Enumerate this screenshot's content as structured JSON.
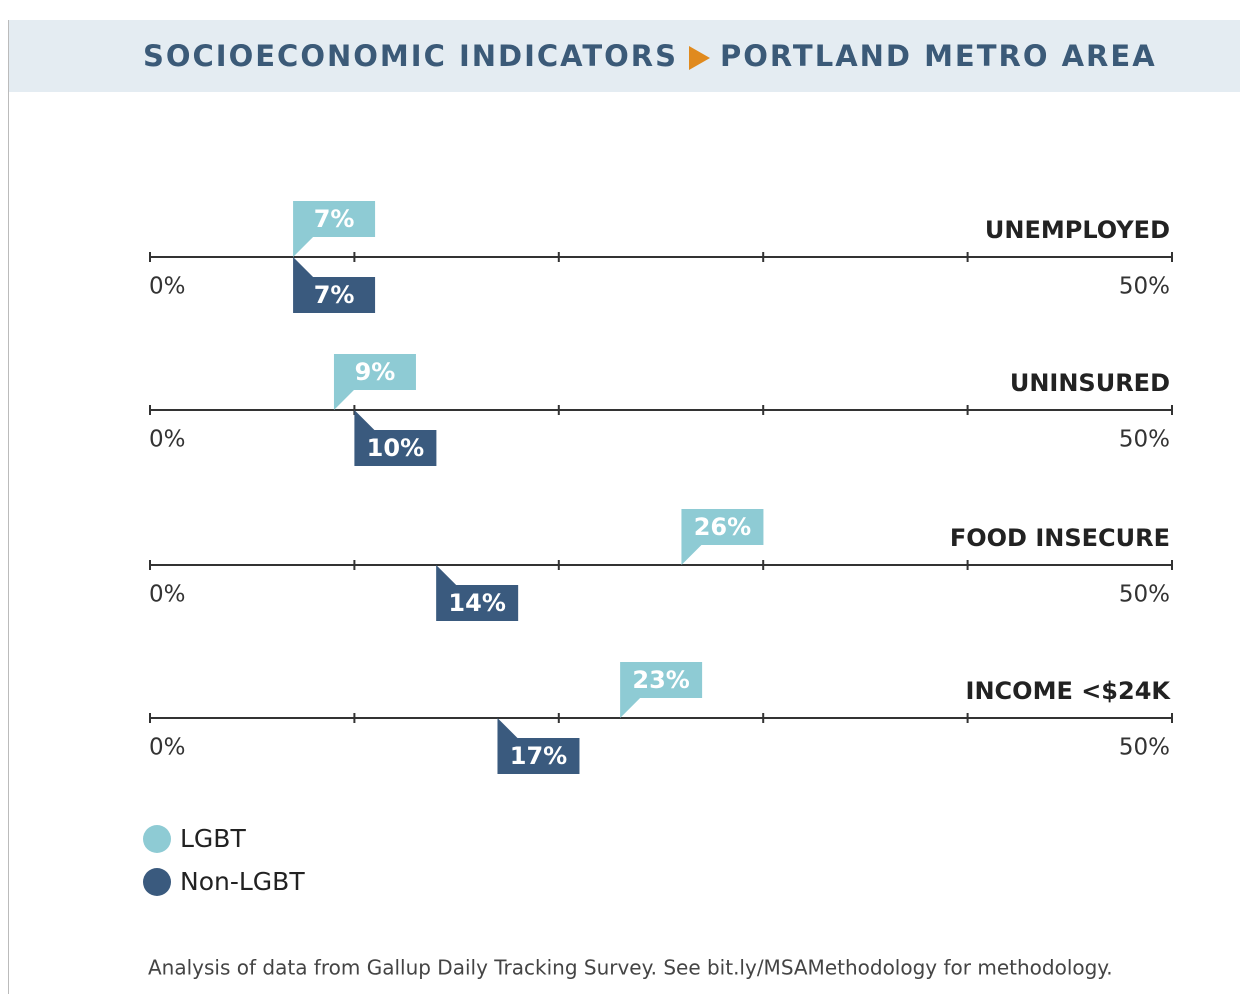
{
  "chart_data": {
    "type": "flag-dot",
    "title": "SOCIOECONOMIC INDICATORS",
    "subtitle": "PORTLAND METRO AREA",
    "categories": [
      "UNEMPLOYED",
      "UNINSURED",
      "FOOD INSECURE",
      "INCOME <$24K"
    ],
    "series": [
      {
        "name": "LGBT",
        "color": "#8ecbd4",
        "values": [
          7,
          9,
          26,
          23
        ],
        "value_labels": [
          "7%",
          "9%",
          "26%",
          "23%"
        ]
      },
      {
        "name": "Non-LGBT",
        "color": "#3a5a7e",
        "values": [
          7,
          10,
          14,
          17
        ],
        "value_labels": [
          "7%",
          "10%",
          "14%",
          "17%"
        ]
      }
    ],
    "xlim": [
      0,
      50
    ],
    "xticks": [
      {
        "value": 0,
        "label": "0%"
      },
      {
        "value": 10,
        "label": null
      },
      {
        "value": 20,
        "label": null
      },
      {
        "value": 30,
        "label": null
      },
      {
        "value": 40,
        "label": null
      },
      {
        "value": 50,
        "label": "50%"
      }
    ],
    "footnote": "Analysis of data from Gallup Daily Tracking Survey. See bit.ly/MSAMethodology for methodology."
  }
}
